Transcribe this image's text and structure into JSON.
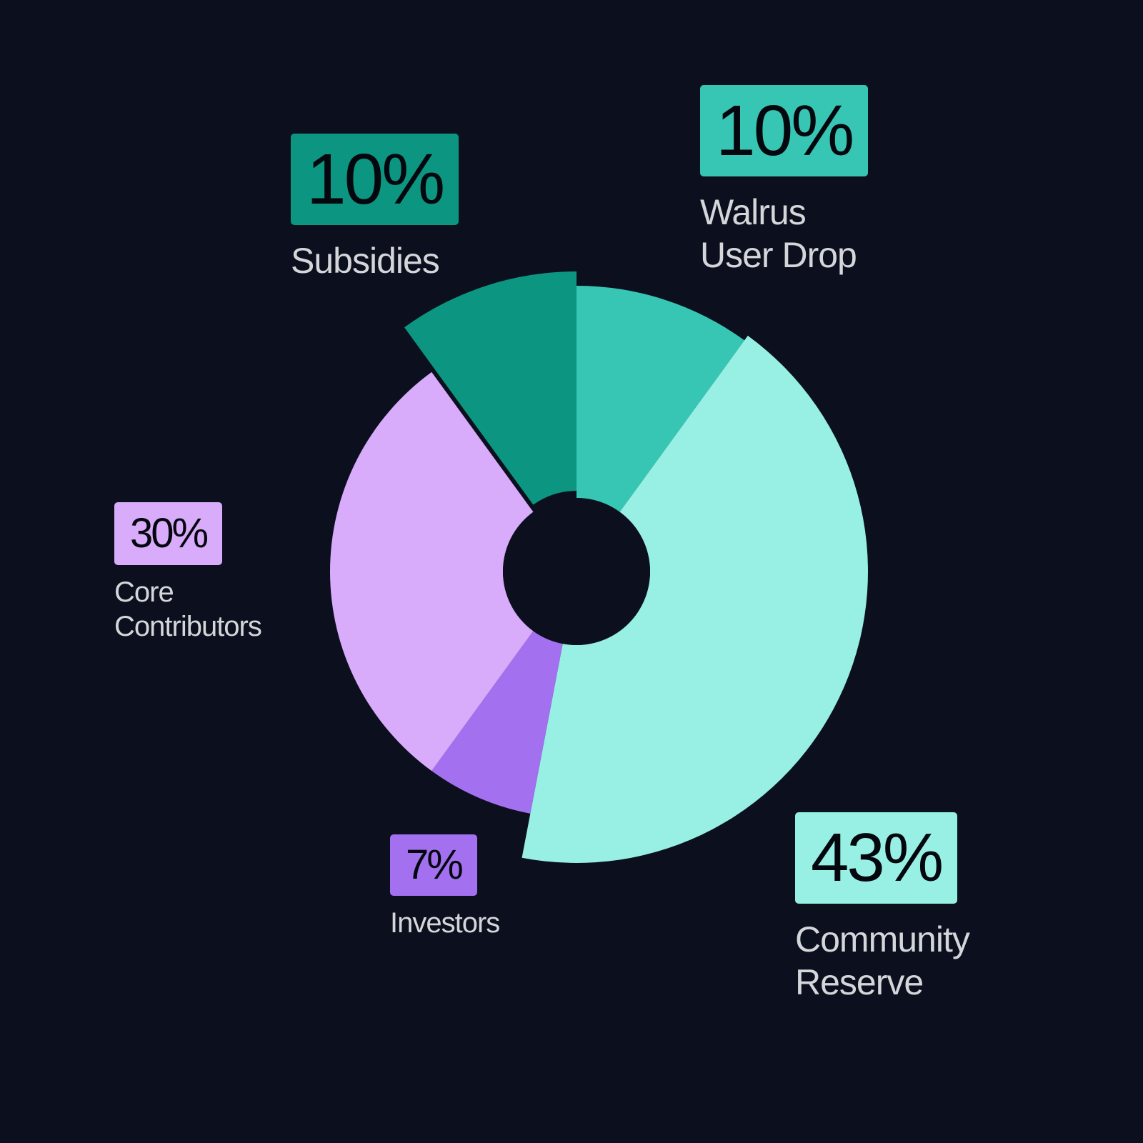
{
  "chart_data": {
    "type": "pie",
    "variant": "donut",
    "categories": [
      "Walrus\nUser Drop",
      "Community\nReserve",
      "Investors",
      "Core\nContributors",
      "Subsidies"
    ],
    "values": [
      10,
      43,
      7,
      30,
      10
    ],
    "value_labels": [
      "10%",
      "43%",
      "7%",
      "30%",
      "10%"
    ],
    "colors": [
      "#37c6b3",
      "#98f0e4",
      "#a370ef",
      "#d8acfa",
      "#0c9580"
    ],
    "background": "#0b0f1e",
    "legend": "callout labels beside each slice",
    "start_angle": "12 o'clock, clockwise"
  }
}
